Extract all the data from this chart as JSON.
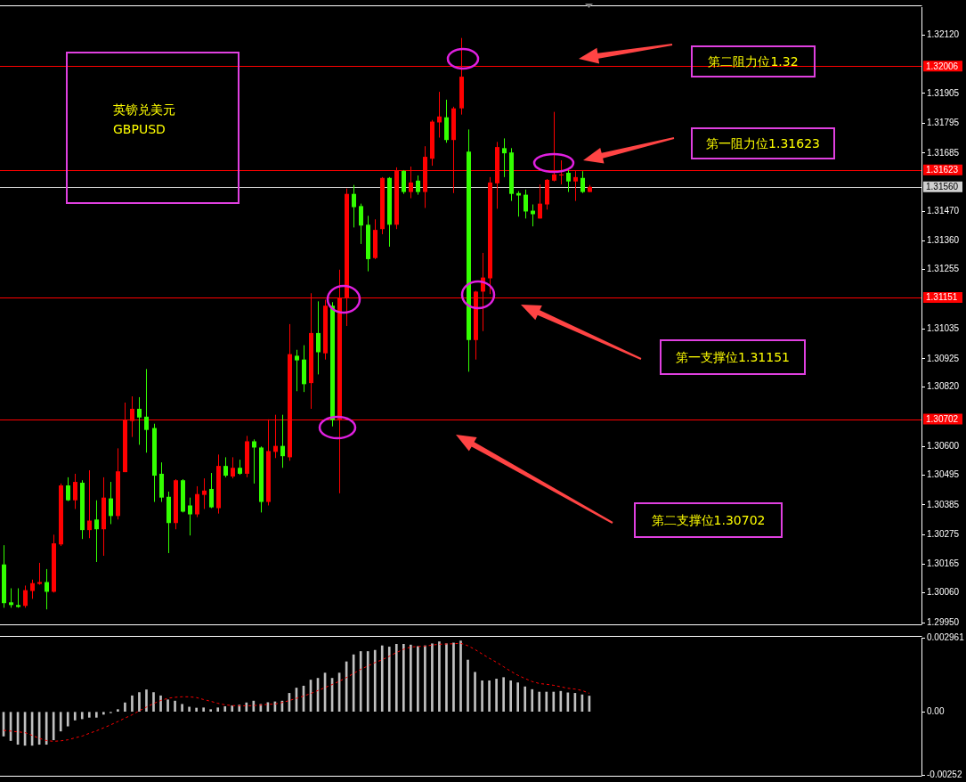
{
  "chart_data": [
    {
      "type": "candlestick",
      "tick_labels": "y",
      "categories": [
        null,
        null,
        null,
        null,
        null,
        null,
        null,
        null,
        null,
        null,
        null,
        null,
        null,
        null,
        null,
        null,
        null,
        null,
        null,
        null,
        null,
        null,
        null,
        null,
        null,
        null,
        null,
        null,
        null,
        null,
        null,
        null,
        null,
        null,
        null,
        null,
        null,
        null,
        null,
        null,
        null,
        null,
        null,
        null,
        null,
        null,
        null,
        null,
        null,
        null,
        null,
        null,
        null,
        null,
        null,
        null,
        null,
        null,
        null,
        null,
        null,
        null,
        null,
        null,
        null,
        null,
        null,
        null,
        null,
        null,
        null,
        null,
        null,
        null,
        null,
        null,
        null,
        null,
        null,
        null,
        null,
        null,
        null,
        null,
        null,
        null,
        null,
        null,
        null,
        null,
        null,
        null,
        null,
        null,
        null,
        null,
        null,
        null,
        null,
        null,
        null,
        null,
        null,
        null,
        null,
        null,
        null,
        null,
        null,
        null,
        null,
        null,
        null,
        null,
        null,
        null,
        null,
        null,
        null,
        null,
        null,
        null,
        null,
        null,
        null,
        null,
        null,
        null,
        null
      ],
      "ohlc": [
        [
          1.30022,
          1.30236,
          1.30005,
          1.30165
        ],
        [
          1.30015,
          1.30077,
          1.30005,
          1.30025
        ],
        [
          1.30008,
          1.30077,
          1.30005,
          1.30015
        ],
        [
          1.3007,
          1.30087,
          1.30005,
          1.30012
        ],
        [
          1.30096,
          1.30109,
          1.30038,
          1.30067
        ],
        [
          1.301,
          1.30171,
          1.3009,
          1.30093
        ],
        [
          1.30064,
          1.30148,
          1.29999,
          1.301
        ],
        [
          1.30243,
          1.30275,
          1.30061,
          1.30064
        ],
        [
          1.30457,
          1.30464,
          1.30233,
          1.30239
        ],
        [
          1.30402,
          1.30487,
          1.30399,
          1.30457
        ],
        [
          1.3047,
          1.305,
          1.3037,
          1.30402
        ],
        [
          1.30292,
          1.30476,
          1.30259,
          1.30467
        ],
        [
          1.30327,
          1.30513,
          1.30262,
          1.30292
        ],
        [
          1.30295,
          1.30402,
          1.30174,
          1.30331
        ],
        [
          1.30412,
          1.30487,
          1.30197,
          1.30295
        ],
        [
          1.30344,
          1.3047,
          1.30314,
          1.30409
        ],
        [
          1.30509,
          1.30594,
          1.30331,
          1.30344
        ],
        [
          1.30698,
          1.30763,
          1.30506,
          1.30506
        ],
        [
          1.3074,
          1.30786,
          1.30636,
          1.30695
        ],
        [
          1.30708,
          1.30783,
          1.30607,
          1.3074
        ],
        [
          1.30662,
          1.30887,
          1.30578,
          1.30711
        ],
        [
          1.30493,
          1.30685,
          1.30396,
          1.30669
        ],
        [
          1.30412,
          1.30542,
          1.30396,
          1.305
        ],
        [
          1.30318,
          1.30434,
          1.30207,
          1.30415
        ],
        [
          1.30476,
          1.3048,
          1.30295,
          1.30318
        ],
        [
          1.3036,
          1.3048,
          1.30357,
          1.30476
        ],
        [
          1.3035,
          1.30412,
          1.30272,
          1.30383
        ],
        [
          1.30425,
          1.30454,
          1.3034,
          1.3035
        ],
        [
          1.30438,
          1.30483,
          1.3037,
          1.30422
        ],
        [
          1.30376,
          1.30503,
          1.30373,
          1.30444
        ],
        [
          1.30529,
          1.30571,
          1.30353,
          1.30373
        ],
        [
          1.30493,
          1.30561,
          1.30487,
          1.30529
        ],
        [
          1.30522,
          1.30561,
          1.30483,
          1.3049
        ],
        [
          1.305,
          1.30552,
          1.30496,
          1.30522
        ],
        [
          1.3062,
          1.3064,
          1.30487,
          1.305
        ],
        [
          1.30597,
          1.30627,
          1.30464,
          1.3062
        ],
        [
          1.30396,
          1.30601,
          1.30357,
          1.30597
        ],
        [
          1.30584,
          1.30701,
          1.30383,
          1.30396
        ],
        [
          1.30603,
          1.30718,
          1.30558,
          1.30581
        ],
        [
          1.30565,
          1.30718,
          1.30522,
          1.30603
        ],
        [
          1.30942,
          1.31053,
          1.30548,
          1.30561
        ],
        [
          1.30919,
          1.30958,
          1.30805,
          1.30936
        ],
        [
          1.30831,
          1.30975,
          1.30802,
          1.30922
        ],
        [
          1.3102,
          1.31167,
          1.3074,
          1.30835
        ],
        [
          1.30949,
          1.31137,
          1.30867,
          1.3102
        ],
        [
          1.31121,
          1.31143,
          1.30922,
          1.30945
        ],
        [
          1.30698,
          1.31134,
          1.30675,
          1.31121
        ],
        [
          1.3115,
          1.31254,
          1.30428,
          1.30701
        ],
        [
          1.31534,
          1.31554,
          1.31046,
          1.3115
        ],
        [
          1.31485,
          1.31567,
          1.3141,
          1.31534
        ],
        [
          1.31417,
          1.31498,
          1.31349,
          1.31489
        ],
        [
          1.31293,
          1.31453,
          1.31248,
          1.3142
        ],
        [
          1.31401,
          1.3144,
          1.31293,
          1.31297
        ],
        [
          1.31593,
          1.31596,
          1.31385,
          1.31404
        ],
        [
          1.3142,
          1.31596,
          1.31339,
          1.31593
        ],
        [
          1.31619,
          1.31632,
          1.31404,
          1.3142
        ],
        [
          1.31541,
          1.31622,
          1.31534,
          1.31619
        ],
        [
          1.31576,
          1.31635,
          1.31518,
          1.31541
        ],
        [
          1.31541,
          1.31602,
          1.31531,
          1.31583
        ],
        [
          1.31671,
          1.3171,
          1.31482,
          1.31541
        ],
        [
          1.31801,
          1.31807,
          1.31638,
          1.31664
        ],
        [
          1.3182,
          1.31911,
          1.31742,
          1.31798
        ],
        [
          1.31733,
          1.31882,
          1.31723,
          1.31817
        ],
        [
          1.3185,
          1.31856,
          1.31537,
          1.31733
        ],
        [
          1.31967,
          1.3211,
          1.31827,
          1.3185
        ],
        [
          1.30994,
          1.31772,
          1.30877,
          1.3169
        ],
        [
          1.31173,
          1.31176,
          1.30922,
          1.30994
        ],
        [
          1.31225,
          1.31316,
          1.31027,
          1.31173
        ],
        [
          1.31576,
          1.31596,
          1.31164,
          1.31222
        ],
        [
          1.31707,
          1.31726,
          1.31479,
          1.31573
        ],
        [
          1.31684,
          1.31739,
          1.31596,
          1.31703
        ],
        [
          1.31534,
          1.31703,
          1.31508,
          1.31687
        ],
        [
          1.31528,
          1.31544,
          1.3145,
          1.31537
        ],
        [
          1.31469,
          1.3155,
          1.31443,
          1.31531
        ],
        [
          1.31459,
          1.31495,
          1.31414,
          1.31472
        ],
        [
          1.31498,
          1.31569,
          1.31443,
          1.31443
        ],
        [
          1.31586,
          1.31589,
          1.31476,
          1.31495
        ],
        [
          1.31606,
          1.31837,
          1.3158,
          1.31583
        ],
        [
          1.31606,
          1.31658,
          1.31569,
          1.31602
        ],
        [
          1.3158,
          1.31622,
          1.31541,
          1.31612
        ],
        [
          1.31596,
          1.31618,
          1.31508,
          1.3158
        ],
        [
          1.31541,
          1.31618,
          1.31537,
          1.31593
        ],
        [
          1.3156,
          1.31567,
          1.31541,
          1.31541
        ],
        null,
        null,
        null,
        null,
        null,
        null,
        null,
        null,
        null,
        null,
        null,
        null,
        null,
        null,
        null,
        null,
        null,
        null,
        null,
        null,
        null,
        null,
        null,
        null,
        null,
        null,
        null,
        null,
        null,
        null,
        null,
        null,
        null,
        null,
        null,
        null,
        null,
        null,
        null,
        null,
        null,
        null,
        null,
        null,
        null,
        null
      ],
      "colors": [
        "#33ff00",
        "#33ff00",
        "#33ff00",
        "#ff0000",
        "#ff0000",
        "#ff0000",
        "#33ff00",
        "#ff0000",
        "#ff0000",
        "#33ff00",
        "#ff0000",
        "#33ff00",
        "#ff0000",
        "#33ff00",
        "#ff0000",
        "#33ff00",
        "#ff0000",
        "#ff0000",
        "#ff0000",
        "#33ff00",
        "#33ff00",
        "#33ff00",
        "#33ff00",
        "#33ff00",
        "#ff0000",
        "#33ff00",
        "#33ff00",
        "#ff0000",
        "#ff0000",
        "#33ff00",
        "#ff0000",
        "#33ff00",
        "#ff0000",
        "#33ff00",
        "#ff0000",
        "#33ff00",
        "#33ff00",
        "#ff0000",
        "#ff0000",
        "#33ff00",
        "#ff0000",
        "#33ff00",
        "#33ff00",
        "#ff0000",
        "#33ff00",
        "#ff0000",
        "#33ff00",
        "#ff0000",
        "#ff0000",
        "#33ff00",
        "#33ff00",
        "#33ff00",
        "#ff0000",
        "#ff0000",
        "#33ff00",
        "#ff0000",
        "#33ff00",
        "#ff0000",
        "#33ff00",
        "#ff0000",
        "#ff0000",
        "#ff0000",
        "#33ff00",
        "#ff0000",
        "#ff0000",
        "#33ff00",
        "#ff0000",
        "#ff0000",
        "#ff0000",
        "#ff0000",
        "#33ff00",
        "#33ff00",
        "#33ff00",
        "#33ff00",
        "#33ff00",
        "#ff0000",
        "#ff0000",
        "#ff0000",
        "#ff0000",
        "#33ff00",
        "#ff0000",
        "#33ff00",
        "#ff0000",
        null,
        null,
        null,
        null,
        null,
        null,
        null,
        null,
        null,
        null,
        null,
        null,
        null,
        null,
        null,
        null,
        null,
        null,
        null,
        null,
        null,
        null,
        null,
        null,
        null,
        null,
        null,
        null,
        null,
        null,
        null,
        null,
        null,
        null,
        null,
        null,
        null,
        null,
        null,
        null,
        null,
        null,
        null,
        null,
        null,
        null
      ],
      "ylim": [
        1.29947,
        1.32224
      ],
      "yticks": [
        {
          "value": 1.3212,
          "label": "1.32120"
        },
        1.31905,
        1.31795,
        1.31685,
        {
          "value": 1.3147,
          "label": "1.31470"
        },
        {
          "value": 1.3136,
          "label": "1.31360"
        },
        1.31255,
        1.31035,
        1.30925,
        {
          "value": 1.3082,
          "label": "1.30820"
        },
        {
          "value": 1.306,
          "label": "1.30600"
        },
        1.30495,
        1.30385,
        1.30275,
        1.30165,
        {
          "value": 1.3006,
          "label": "1.30060"
        },
        {
          "value": 1.2995,
          "label": "1.29950"
        }
      ],
      "ref_lines": [
        {
          "axis": "y",
          "value": 1.32006,
          "label": "1.32006",
          "color": "#ff0000"
        },
        {
          "axis": "y",
          "value": 1.31623,
          "label": "1.31623",
          "color": "#ff0000"
        },
        {
          "axis": "y",
          "value": 1.3156,
          "label": "1.31560",
          "color": "#d0d0d0"
        },
        {
          "axis": "y",
          "value": 1.31151,
          "label": "1.31151",
          "color": "#ff0000"
        },
        {
          "axis": "y",
          "value": 1.30702,
          "label": "1.30702",
          "color": "#ff0000"
        }
      ],
      "annotations": [
        "英镑兑美元",
        "GBPUSD",
        "第二阻力位1.32",
        "第一阻力位1.31623",
        "第一支撑位1.31151",
        "第二支撑位1.30702"
      ]
    },
    {
      "type": "bar",
      "tick_labels": "y",
      "categories": [
        null,
        null,
        null,
        null,
        null,
        null,
        null,
        null,
        null,
        null,
        null,
        null,
        null,
        null,
        null,
        null,
        null,
        null,
        null,
        null,
        null,
        null,
        null,
        null,
        null,
        null,
        null,
        null,
        null,
        null,
        null,
        null,
        null,
        null,
        null,
        null,
        null,
        null,
        null,
        null,
        null,
        null,
        null,
        null,
        null,
        null,
        null,
        null,
        null,
        null,
        null,
        null,
        null,
        null,
        null,
        null,
        null,
        null,
        null,
        null,
        null,
        null,
        null,
        null,
        null,
        null,
        null,
        null,
        null,
        null,
        null,
        null,
        null,
        null,
        null,
        null,
        null,
        null,
        null,
        null,
        null,
        null,
        null,
        null,
        null,
        null,
        null,
        null,
        null,
        null,
        null,
        null,
        null,
        null,
        null,
        null,
        null,
        null,
        null,
        null,
        null,
        null,
        null,
        null,
        null,
        null,
        null,
        null,
        null,
        null,
        null,
        null,
        null,
        null,
        null,
        null,
        null,
        null,
        null,
        null,
        null,
        null,
        null,
        null,
        null,
        null,
        null,
        null,
        null
      ],
      "ylim": [
        -0.00252,
        0.002961
      ],
      "yticks": [
        0.002961,
        {
          "value": 0,
          "label": "0.00"
        },
        -0.00252
      ],
      "series": [
        {
          "type": "bar",
          "color": "#c0c0c0",
          "values": [
            -0.00097,
            -0.00115,
            -0.0013,
            -0.00134,
            -0.00134,
            -0.0013,
            -0.0013,
            -0.00112,
            -0.00077,
            -0.00057,
            -0.00033,
            -0.00028,
            -0.00022,
            -0.00022,
            -0.0001,
            -4e-05,
            9e-05,
            0.00036,
            0.00064,
            0.00077,
            0.00088,
            0.00077,
            0.00064,
            0.00048,
            0.00043,
            0.0003,
            0.00019,
            0.00015,
            0.00016,
            9e-05,
            0.00016,
            0.00021,
            0.00024,
            0.00027,
            0.00036,
            0.00043,
            0.0003,
            0.00037,
            0.0004,
            0.00043,
            0.00074,
            0.00095,
            0.00103,
            0.00127,
            0.00134,
            0.00155,
            0.00134,
            0.00155,
            0.002,
            0.00228,
            0.00241,
            0.00241,
            0.00246,
            0.00264,
            0.00259,
            0.0027,
            0.0027,
            0.00267,
            0.00261,
            0.00264,
            0.00272,
            0.0028,
            0.00272,
            0.00275,
            0.00283,
            0.00207,
            0.00158,
            0.00124,
            0.00124,
            0.00131,
            0.00137,
            0.00124,
            0.00116,
            0.001,
            0.00089,
            0.00079,
            0.00079,
            0.00079,
            0.00082,
            0.00076,
            0.00074,
            0.00068,
            0.00063,
            null,
            null,
            null,
            null,
            null,
            null,
            null,
            null,
            null,
            null,
            null,
            null,
            null,
            null,
            null,
            null,
            null,
            null,
            null,
            null,
            null,
            null,
            null,
            null,
            null,
            null,
            null,
            null,
            null,
            null,
            null,
            null,
            null,
            null,
            null,
            null,
            null,
            null,
            null,
            null,
            null,
            null,
            null,
            null,
            null,
            null
          ]
        },
        {
          "type": "line",
          "color": "#ff0000",
          "line_style": "dashed",
          "marker": "none",
          "values": [
            -0.00074,
            -0.00077,
            -0.0008,
            -0.00083,
            -0.00094,
            -0.00106,
            -0.00115,
            -0.00118,
            -0.00116,
            -0.00112,
            -0.00104,
            -0.00097,
            -0.00086,
            -0.00076,
            -0.00064,
            -0.00052,
            -0.00039,
            -0.00025,
            -0.00012,
            4e-05,
            0.00019,
            0.00033,
            0.00045,
            0.00054,
            0.00058,
            0.0006,
            0.0006,
            0.00057,
            0.00049,
            0.00042,
            0.00034,
            0.00028,
            0.00025,
            0.00024,
            0.00024,
            0.00025,
            0.00027,
            0.0003,
            0.00031,
            0.00037,
            0.00045,
            0.00054,
            0.00063,
            0.00073,
            0.00085,
            0.00097,
            0.00109,
            0.00122,
            0.00137,
            0.00153,
            0.0017,
            0.00183,
            0.00197,
            0.00208,
            0.00222,
            0.00237,
            0.0025,
            0.00259,
            0.00261,
            0.00262,
            0.00267,
            0.0027,
            0.00271,
            0.00272,
            0.00274,
            0.00264,
            0.00249,
            0.00231,
            0.00214,
            0.00198,
            0.0018,
            0.00162,
            0.00146,
            0.00133,
            0.00121,
            0.00113,
            0.0011,
            0.00106,
            0.001,
            0.00094,
            0.00091,
            0.00085,
            0.00074,
            null,
            null,
            null,
            null,
            null,
            null,
            null,
            null,
            null,
            null,
            null,
            null,
            null,
            null,
            null,
            null,
            null,
            null,
            null,
            null,
            null,
            null,
            null,
            null,
            null,
            null,
            null,
            null,
            null,
            null,
            null,
            null,
            null,
            null,
            null,
            null,
            null,
            null,
            null,
            null,
            null,
            null,
            null,
            null,
            null,
            null
          ]
        }
      ]
    }
  ]
}
